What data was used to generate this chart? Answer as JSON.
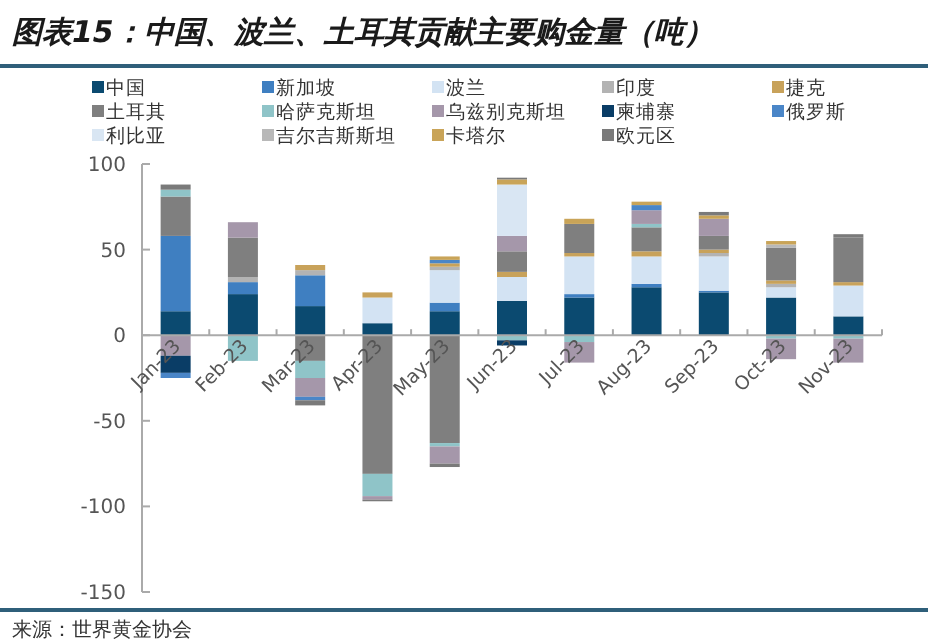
{
  "chart_data": {
    "type": "bar",
    "stacked": true,
    "title": "图表15：中国、波兰、土耳其贡献主要购金量（吨）",
    "categories": [
      "Jan-23",
      "Feb-23",
      "Mar-23",
      "Apr-23",
      "May-23",
      "Jun-23",
      "Jul-23",
      "Aug-23",
      "Sep-23",
      "Oct-23",
      "Nov-23"
    ],
    "ylim": [
      -150,
      100
    ],
    "yticks": [
      -150,
      -100,
      -50,
      0,
      50,
      100
    ],
    "legend": "top",
    "series": [
      {
        "name": "中国",
        "color": "#0b4a70",
        "values": [
          14,
          24,
          17,
          7,
          14,
          20,
          22,
          28,
          25,
          22,
          11
        ]
      },
      {
        "name": "新加坡",
        "color": "#3f7fc1",
        "values": [
          44,
          7,
          18,
          null,
          5,
          null,
          2,
          2,
          1,
          null,
          null
        ]
      },
      {
        "name": "波兰",
        "color": "#d3e3f3",
        "values": [
          null,
          null,
          null,
          15,
          19,
          14,
          22,
          16,
          20,
          6,
          18
        ]
      },
      {
        "name": "印度",
        "color": "#b3b3b3",
        "values": [
          null,
          3,
          3,
          null,
          2,
          null,
          null,
          null,
          2,
          2,
          null
        ]
      },
      {
        "name": "捷克",
        "color": "#c8a25a",
        "values": [
          null,
          null,
          3,
          3,
          2,
          3,
          2,
          3,
          2,
          2,
          2
        ]
      },
      {
        "name": "土耳其",
        "color": "#7f7f7f",
        "values": [
          23,
          23,
          -15,
          -81,
          -63,
          12,
          17,
          14,
          8,
          19,
          26
        ]
      },
      {
        "name": "哈萨克斯坦",
        "color": "#8fc4c8",
        "values": [
          4,
          -15,
          -10,
          -13,
          -2,
          -3,
          -4,
          2,
          null,
          -2,
          -2
        ]
      },
      {
        "name": "乌兹别克斯坦",
        "color": "#a597aa",
        "values": [
          -12,
          9,
          -11,
          -2,
          -10,
          9,
          -12,
          8,
          10,
          -12,
          -14
        ]
      },
      {
        "name": "柬埔寨",
        "color": "#0a3d66",
        "values": [
          -10,
          null,
          null,
          null,
          null,
          -3,
          null,
          null,
          null,
          null,
          null
        ]
      },
      {
        "name": "俄罗斯",
        "color": "#4a86c8",
        "values": [
          -3,
          null,
          -2,
          null,
          2,
          null,
          null,
          3,
          null,
          null,
          null
        ]
      },
      {
        "name": "利比亚",
        "color": "#d9e6f3",
        "values": [
          null,
          null,
          null,
          null,
          null,
          30,
          null,
          null,
          null,
          null,
          null
        ]
      },
      {
        "name": "吉尔吉斯斯坦",
        "color": "#b8b8b8",
        "values": [
          null,
          null,
          null,
          null,
          null,
          null,
          null,
          null,
          null,
          2,
          null
        ]
      },
      {
        "name": "卡塔尔",
        "color": "#c9a458",
        "values": [
          null,
          null,
          null,
          null,
          2,
          3,
          3,
          2,
          2,
          2,
          null
        ]
      },
      {
        "name": "欧元区",
        "color": "#7a7a7a",
        "values": [
          3,
          null,
          -3,
          -1,
          -2,
          1,
          null,
          null,
          2,
          null,
          2
        ]
      }
    ],
    "annotations": [
      "来源：世界黄金协会"
    ]
  }
}
